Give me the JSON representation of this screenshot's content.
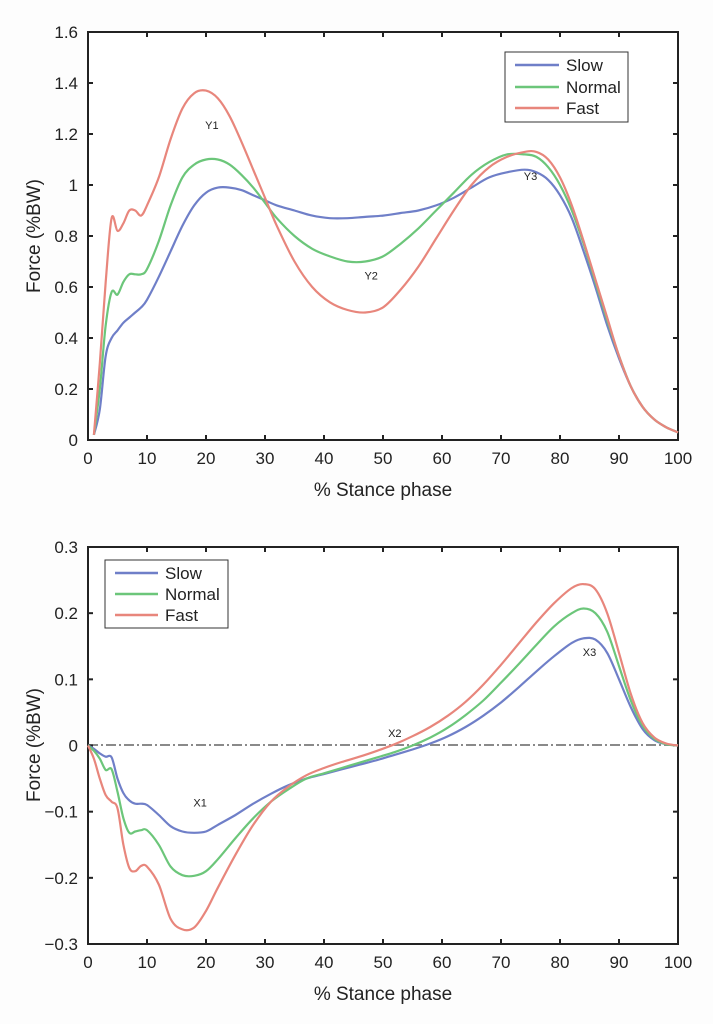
{
  "chart_data": [
    {
      "type": "line",
      "xlabel": "% Stance phase",
      "ylabel": "Force (%BW)",
      "xlim": [
        0,
        100
      ],
      "ylim": [
        0,
        1.6
      ],
      "xticks": [
        "0",
        "10",
        "20",
        "30",
        "40",
        "50",
        "60",
        "70",
        "80",
        "90",
        "100"
      ],
      "yticks": [
        "0",
        "0.2",
        "0.4",
        "0.6",
        "0.8",
        "1",
        "1.2",
        "1.4",
        "1.6"
      ],
      "legend_position": "top-right",
      "legend": [
        "Slow",
        "Normal",
        "Fast"
      ],
      "annotations": [
        {
          "text": "Y1",
          "x": 21,
          "y": 1.22
        },
        {
          "text": "Y2",
          "x": 48,
          "y": 0.63
        },
        {
          "text": "Y3",
          "x": 75,
          "y": 1.02
        }
      ],
      "series": [
        {
          "name": "Slow",
          "color": "#6f7fc8",
          "x": [
            1,
            2,
            3,
            4,
            5,
            6,
            7,
            8,
            9,
            10,
            12,
            14,
            16,
            18,
            20,
            22,
            24,
            26,
            28,
            30,
            32,
            35,
            38,
            41,
            44,
            47,
            50,
            53,
            56,
            59,
            62,
            65,
            68,
            71,
            74,
            76,
            78,
            80,
            82,
            84,
            86,
            88,
            90,
            92,
            94,
            96,
            98,
            100
          ],
          "y": [
            0.02,
            0.12,
            0.33,
            0.4,
            0.43,
            0.46,
            0.48,
            0.5,
            0.52,
            0.55,
            0.64,
            0.74,
            0.84,
            0.92,
            0.97,
            0.99,
            0.99,
            0.98,
            0.96,
            0.94,
            0.92,
            0.9,
            0.88,
            0.87,
            0.87,
            0.875,
            0.88,
            0.89,
            0.9,
            0.92,
            0.95,
            0.99,
            1.03,
            1.05,
            1.06,
            1.05,
            1.02,
            0.96,
            0.87,
            0.74,
            0.6,
            0.45,
            0.32,
            0.21,
            0.13,
            0.08,
            0.05,
            0.03
          ]
        },
        {
          "name": "Normal",
          "color": "#6cc67a",
          "x": [
            1,
            2,
            3,
            4,
            5,
            6,
            7,
            8,
            9,
            10,
            12,
            14,
            16,
            18,
            20,
            22,
            24,
            26,
            28,
            30,
            32,
            35,
            38,
            41,
            44,
            47,
            50,
            53,
            56,
            59,
            62,
            65,
            68,
            71,
            74,
            76,
            78,
            80,
            82,
            84,
            86,
            88,
            90,
            92,
            94,
            96,
            98,
            100
          ],
          "y": [
            0.02,
            0.2,
            0.45,
            0.58,
            0.57,
            0.62,
            0.65,
            0.65,
            0.65,
            0.67,
            0.78,
            0.92,
            1.03,
            1.08,
            1.1,
            1.1,
            1.08,
            1.04,
            0.99,
            0.93,
            0.87,
            0.8,
            0.75,
            0.72,
            0.7,
            0.7,
            0.72,
            0.77,
            0.83,
            0.9,
            0.97,
            1.04,
            1.09,
            1.12,
            1.12,
            1.11,
            1.07,
            1.0,
            0.9,
            0.77,
            0.62,
            0.47,
            0.33,
            0.21,
            0.13,
            0.08,
            0.05,
            0.03
          ]
        },
        {
          "name": "Fast",
          "color": "#e8867c",
          "x": [
            1,
            2,
            3,
            4,
            5,
            6,
            7,
            8,
            9,
            10,
            12,
            14,
            16,
            18,
            20,
            22,
            24,
            26,
            28,
            30,
            32,
            35,
            38,
            41,
            44,
            47,
            50,
            53,
            56,
            59,
            62,
            65,
            68,
            71,
            74,
            76,
            78,
            80,
            82,
            84,
            86,
            88,
            90,
            92,
            94,
            96,
            98,
            100
          ],
          "y": [
            0.02,
            0.3,
            0.62,
            0.87,
            0.82,
            0.85,
            0.9,
            0.9,
            0.88,
            0.92,
            1.03,
            1.18,
            1.3,
            1.36,
            1.37,
            1.34,
            1.27,
            1.17,
            1.06,
            0.95,
            0.84,
            0.7,
            0.6,
            0.54,
            0.51,
            0.5,
            0.52,
            0.59,
            0.68,
            0.79,
            0.9,
            1.0,
            1.07,
            1.11,
            1.13,
            1.13,
            1.1,
            1.03,
            0.92,
            0.78,
            0.63,
            0.48,
            0.33,
            0.21,
            0.13,
            0.08,
            0.05,
            0.03
          ]
        }
      ]
    },
    {
      "type": "line",
      "xlabel": "% Stance phase",
      "ylabel": "Force (%BW)",
      "xlim": [
        0,
        100
      ],
      "ylim": [
        -0.3,
        0.3
      ],
      "xticks": [
        "0",
        "10",
        "20",
        "30",
        "40",
        "50",
        "60",
        "70",
        "80",
        "90",
        "100"
      ],
      "yticks": [
        "−0.3",
        "−0.2",
        "−0.1",
        "0",
        "0.1",
        "0.2",
        "0.3"
      ],
      "ytick_values": [
        -0.3,
        -0.2,
        -0.1,
        0,
        0.1,
        0.2,
        0.3
      ],
      "legend_position": "top-left",
      "legend": [
        "Slow",
        "Normal",
        "Fast"
      ],
      "reference_line": {
        "y": 0,
        "style": "dash-dot"
      },
      "annotations": [
        {
          "text": "X1",
          "x": 19,
          "y": -0.092
        },
        {
          "text": "X2",
          "x": 52,
          "y": 0.013
        },
        {
          "text": "X3",
          "x": 85,
          "y": 0.135
        }
      ],
      "series": [
        {
          "name": "Slow",
          "color": "#6f7fc8",
          "x": [
            0,
            1,
            2,
            3,
            4,
            5,
            6,
            7,
            8,
            9,
            10,
            12,
            14,
            16,
            18,
            20,
            22,
            25,
            28,
            31,
            34,
            37,
            40,
            43,
            46,
            49,
            52,
            55,
            58,
            61,
            64,
            67,
            70,
            73,
            76,
            79,
            82,
            84,
            86,
            88,
            90,
            92,
            94,
            96,
            98,
            100
          ],
          "y": [
            0,
            -0.005,
            -0.012,
            -0.017,
            -0.018,
            -0.05,
            -0.072,
            -0.083,
            -0.088,
            -0.088,
            -0.09,
            -0.105,
            -0.122,
            -0.13,
            -0.132,
            -0.13,
            -0.12,
            -0.105,
            -0.088,
            -0.073,
            -0.06,
            -0.05,
            -0.043,
            -0.036,
            -0.029,
            -0.022,
            -0.014,
            -0.006,
            0.003,
            0.014,
            0.028,
            0.045,
            0.065,
            0.088,
            0.112,
            0.135,
            0.155,
            0.162,
            0.16,
            0.14,
            0.1,
            0.058,
            0.025,
            0.008,
            0.002,
            0
          ]
        },
        {
          "name": "Normal",
          "color": "#6cc67a",
          "x": [
            0,
            1,
            2,
            3,
            4,
            5,
            6,
            7,
            8,
            9,
            10,
            12,
            14,
            16,
            18,
            20,
            22,
            25,
            28,
            31,
            34,
            37,
            40,
            43,
            46,
            49,
            52,
            55,
            58,
            61,
            64,
            67,
            70,
            73,
            76,
            79,
            82,
            84,
            86,
            88,
            90,
            92,
            94,
            96,
            98,
            100
          ],
          "y": [
            0,
            -0.008,
            -0.02,
            -0.037,
            -0.036,
            -0.07,
            -0.11,
            -0.132,
            -0.13,
            -0.128,
            -0.128,
            -0.15,
            -0.183,
            -0.196,
            -0.197,
            -0.19,
            -0.172,
            -0.14,
            -0.11,
            -0.085,
            -0.066,
            -0.05,
            -0.042,
            -0.034,
            -0.026,
            -0.018,
            -0.01,
            0.0,
            0.012,
            0.027,
            0.046,
            0.068,
            0.095,
            0.123,
            0.152,
            0.18,
            0.2,
            0.207,
            0.2,
            0.172,
            0.12,
            0.068,
            0.03,
            0.01,
            0.002,
            0
          ]
        },
        {
          "name": "Fast",
          "color": "#e8867c",
          "x": [
            0,
            1,
            2,
            3,
            4,
            5,
            6,
            7,
            8,
            9,
            10,
            12,
            14,
            16,
            18,
            20,
            22,
            25,
            28,
            31,
            34,
            37,
            40,
            43,
            46,
            49,
            52,
            55,
            58,
            61,
            64,
            67,
            70,
            73,
            76,
            79,
            82,
            84,
            86,
            88,
            90,
            92,
            94,
            96,
            98,
            100
          ],
          "y": [
            0,
            -0.02,
            -0.05,
            -0.075,
            -0.085,
            -0.095,
            -0.15,
            -0.185,
            -0.19,
            -0.182,
            -0.183,
            -0.21,
            -0.262,
            -0.278,
            -0.275,
            -0.25,
            -0.215,
            -0.165,
            -0.12,
            -0.085,
            -0.062,
            -0.045,
            -0.034,
            -0.025,
            -0.017,
            -0.008,
            0.002,
            0.014,
            0.028,
            0.045,
            0.066,
            0.092,
            0.122,
            0.154,
            0.186,
            0.215,
            0.238,
            0.244,
            0.236,
            0.2,
            0.14,
            0.078,
            0.034,
            0.012,
            0.003,
            0
          ]
        }
      ]
    }
  ]
}
